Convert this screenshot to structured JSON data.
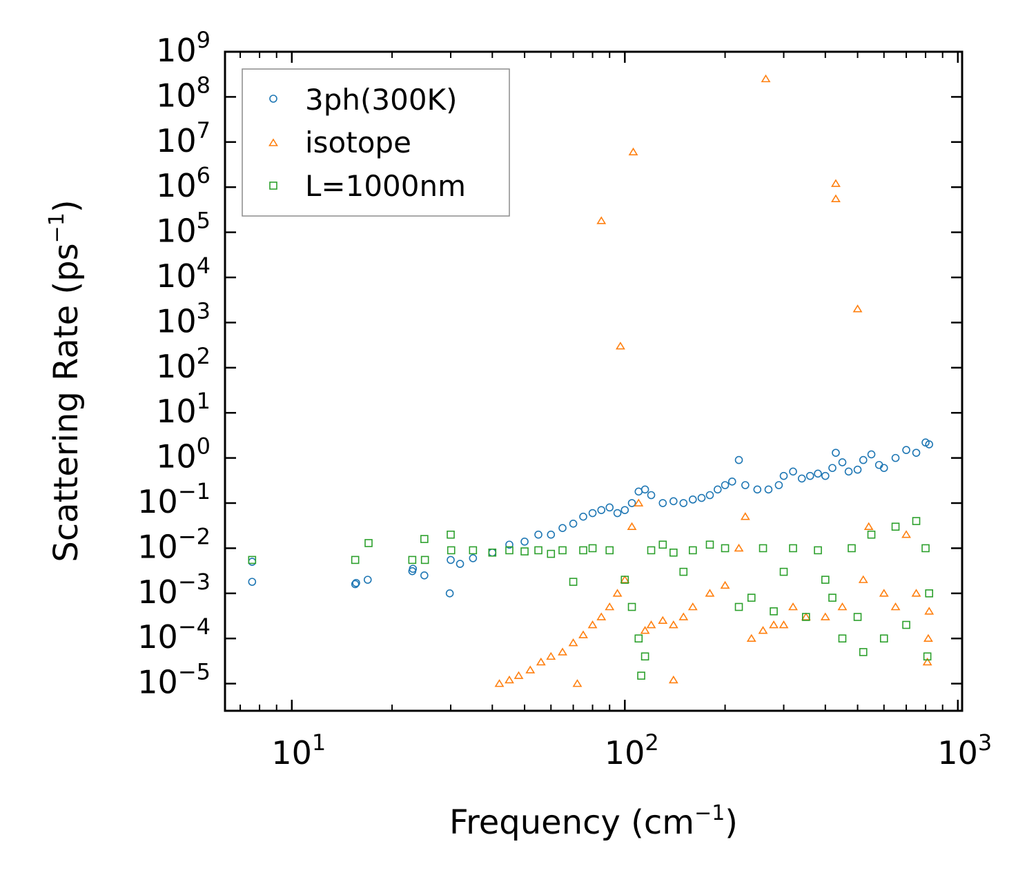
{
  "chart_data": {
    "type": "scatter",
    "title": "",
    "xlabel": {
      "base": "Frequency (cm",
      "sup": "−1",
      "tail": ")"
    },
    "ylabel": {
      "base": "Scattering Rate (ps",
      "sup": "−1",
      "tail": ")"
    },
    "xscale": "log",
    "yscale": "log",
    "xlim": [
      6.3,
      1030
    ],
    "ylim": [
      2.5e-06,
      1000000000
    ],
    "xticks": [
      {
        "value": 10,
        "base": "10",
        "exp": "1"
      },
      {
        "value": 100,
        "base": "10",
        "exp": "2"
      },
      {
        "value": 1000,
        "base": "10",
        "exp": "3"
      }
    ],
    "yticks": [
      {
        "value": 1e-05,
        "base": "10",
        "exp": "−5"
      },
      {
        "value": 0.0001,
        "base": "10",
        "exp": "−4"
      },
      {
        "value": 0.001,
        "base": "10",
        "exp": "−3"
      },
      {
        "value": 0.01,
        "base": "10",
        "exp": "−2"
      },
      {
        "value": 0.1,
        "base": "10",
        "exp": "−1"
      },
      {
        "value": 1,
        "base": "10",
        "exp": "0"
      },
      {
        "value": 10,
        "base": "10",
        "exp": "1"
      },
      {
        "value": 100,
        "base": "10",
        "exp": "2"
      },
      {
        "value": 1000,
        "base": "10",
        "exp": "3"
      },
      {
        "value": 10000,
        "base": "10",
        "exp": "4"
      },
      {
        "value": 100000,
        "base": "10",
        "exp": "5"
      },
      {
        "value": 1000000,
        "base": "10",
        "exp": "6"
      },
      {
        "value": 10000000,
        "base": "10",
        "exp": "7"
      },
      {
        "value": 100000000,
        "base": "10",
        "exp": "8"
      },
      {
        "value": 1000000000,
        "base": "10",
        "exp": "9"
      }
    ],
    "legend_position": "top-left",
    "grid": false,
    "series": [
      {
        "name": "3ph(300K)",
        "marker": "circle",
        "color": "#1f77b4",
        "points": [
          [
            7.6,
            0.0018
          ],
          [
            7.6,
            0.005
          ],
          [
            15.5,
            0.0016
          ],
          [
            15.6,
            0.0017
          ],
          [
            16.9,
            0.002
          ],
          [
            23,
            0.0031
          ],
          [
            23.1,
            0.0035
          ],
          [
            25,
            0.0025
          ],
          [
            29.8,
            0.001
          ],
          [
            30,
            0.0055
          ],
          [
            32,
            0.0045
          ],
          [
            35,
            0.006
          ],
          [
            40,
            0.008
          ],
          [
            45,
            0.012
          ],
          [
            50,
            0.014
          ],
          [
            55,
            0.02
          ],
          [
            60,
            0.02
          ],
          [
            65,
            0.028
          ],
          [
            70,
            0.035
          ],
          [
            75,
            0.05
          ],
          [
            80,
            0.06
          ],
          [
            85,
            0.07
          ],
          [
            90,
            0.08
          ],
          [
            95,
            0.06
          ],
          [
            100,
            0.07
          ],
          [
            105,
            0.1
          ],
          [
            110,
            0.18
          ],
          [
            115,
            0.2
          ],
          [
            120,
            0.15
          ],
          [
            130,
            0.1
          ],
          [
            140,
            0.11
          ],
          [
            150,
            0.1
          ],
          [
            160,
            0.12
          ],
          [
            170,
            0.13
          ],
          [
            180,
            0.15
          ],
          [
            190,
            0.2
          ],
          [
            200,
            0.25
          ],
          [
            210,
            0.3
          ],
          [
            220,
            0.9
          ],
          [
            230,
            0.25
          ],
          [
            250,
            0.2
          ],
          [
            270,
            0.2
          ],
          [
            290,
            0.25
          ],
          [
            300,
            0.4
          ],
          [
            320,
            0.5
          ],
          [
            340,
            0.35
          ],
          [
            360,
            0.4
          ],
          [
            380,
            0.45
          ],
          [
            400,
            0.4
          ],
          [
            420,
            0.6
          ],
          [
            430,
            1.3
          ],
          [
            450,
            0.8
          ],
          [
            470,
            0.5
          ],
          [
            500,
            0.55
          ],
          [
            520,
            0.9
          ],
          [
            550,
            1.2
          ],
          [
            580,
            0.7
          ],
          [
            600,
            0.6
          ],
          [
            650,
            1.0
          ],
          [
            700,
            1.5
          ],
          [
            750,
            1.3
          ],
          [
            800,
            2.2
          ],
          [
            820,
            2.0
          ]
        ]
      },
      {
        "name": "isotope",
        "marker": "triangle",
        "color": "#ff7f0e",
        "points": [
          [
            42,
            1e-05
          ],
          [
            45,
            1.2e-05
          ],
          [
            48,
            1.5e-05
          ],
          [
            52,
            2e-05
          ],
          [
            56,
            3e-05
          ],
          [
            60,
            4e-05
          ],
          [
            65,
            5e-05
          ],
          [
            70,
            8e-05
          ],
          [
            72,
            1e-05
          ],
          [
            75,
            0.00012
          ],
          [
            80,
            0.0002
          ],
          [
            85,
            180000
          ],
          [
            85,
            0.0003
          ],
          [
            90,
            0.0005
          ],
          [
            95,
            0.001
          ],
          [
            97,
            300
          ],
          [
            100,
            0.002
          ],
          [
            105,
            0.03
          ],
          [
            106,
            6000000
          ],
          [
            110,
            0.1
          ],
          [
            115,
            0.00015
          ],
          [
            120,
            0.0002
          ],
          [
            130,
            0.00025
          ],
          [
            140,
            0.0002
          ],
          [
            140,
            1.2e-05
          ],
          [
            150,
            0.0003
          ],
          [
            160,
            0.0005
          ],
          [
            180,
            0.001
          ],
          [
            200,
            0.0015
          ],
          [
            220,
            0.01
          ],
          [
            230,
            0.05
          ],
          [
            240,
            0.0001
          ],
          [
            260,
            0.00015
          ],
          [
            265,
            250000000
          ],
          [
            280,
            0.0002
          ],
          [
            300,
            0.0002
          ],
          [
            320,
            0.0005
          ],
          [
            350,
            0.0003
          ],
          [
            400,
            0.0003
          ],
          [
            430,
            1200000
          ],
          [
            430,
            550000
          ],
          [
            450,
            0.0005
          ],
          [
            500,
            2000
          ],
          [
            520,
            0.002
          ],
          [
            540,
            0.03
          ],
          [
            600,
            0.001
          ],
          [
            650,
            0.0005
          ],
          [
            700,
            0.02
          ],
          [
            750,
            0.001
          ],
          [
            810,
            3e-05
          ],
          [
            815,
            0.0001
          ],
          [
            820,
            0.0004
          ]
        ]
      },
      {
        "name": "L=1000nm",
        "marker": "square",
        "color": "#2ca02c",
        "points": [
          [
            7.6,
            0.0055
          ],
          [
            15.5,
            0.0055
          ],
          [
            17,
            0.013
          ],
          [
            23,
            0.0055
          ],
          [
            25,
            0.016
          ],
          [
            25.1,
            0.0055
          ],
          [
            30,
            0.02
          ],
          [
            30.1,
            0.009
          ],
          [
            35,
            0.009
          ],
          [
            40,
            0.008
          ],
          [
            45,
            0.009
          ],
          [
            50,
            0.0085
          ],
          [
            55,
            0.009
          ],
          [
            60,
            0.0075
          ],
          [
            65,
            0.009
          ],
          [
            70,
            0.0018
          ],
          [
            75,
            0.009
          ],
          [
            80,
            0.01
          ],
          [
            90,
            0.009
          ],
          [
            100,
            0.002
          ],
          [
            105,
            0.0005
          ],
          [
            110,
            0.0001
          ],
          [
            112,
            1.5e-05
          ],
          [
            115,
            4e-05
          ],
          [
            120,
            0.009
          ],
          [
            130,
            0.012
          ],
          [
            140,
            0.008
          ],
          [
            150,
            0.003
          ],
          [
            160,
            0.009
          ],
          [
            180,
            0.012
          ],
          [
            200,
            0.01
          ],
          [
            220,
            0.0005
          ],
          [
            240,
            0.0008
          ],
          [
            260,
            0.01
          ],
          [
            280,
            0.0004
          ],
          [
            300,
            0.003
          ],
          [
            320,
            0.01
          ],
          [
            350,
            0.0003
          ],
          [
            380,
            0.009
          ],
          [
            400,
            0.002
          ],
          [
            420,
            0.0008
          ],
          [
            450,
            0.0001
          ],
          [
            480,
            0.01
          ],
          [
            500,
            0.0003
          ],
          [
            520,
            5e-05
          ],
          [
            550,
            0.02
          ],
          [
            600,
            0.0001
          ],
          [
            650,
            0.03
          ],
          [
            700,
            0.0002
          ],
          [
            750,
            0.04
          ],
          [
            800,
            0.01
          ],
          [
            810,
            4e-05
          ],
          [
            820,
            0.001
          ]
        ]
      }
    ]
  }
}
